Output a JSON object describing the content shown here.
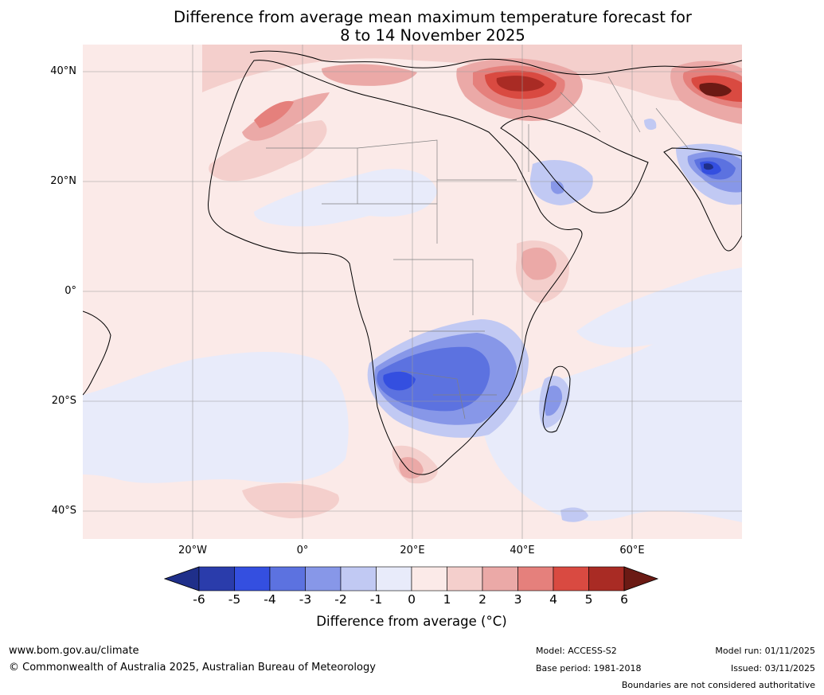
{
  "title": {
    "line1": "Difference from average mean maximum temperature forecast for",
    "line2": "8 to 14 November 2025"
  },
  "axes": {
    "latitude_labels": [
      "40°N",
      "20°N",
      "0°",
      "20°S",
      "40°S"
    ],
    "longitude_labels": [
      "20°W",
      "0°",
      "20°E",
      "40°E",
      "60°E"
    ]
  },
  "colorbar": {
    "label": "Difference from average ($^\\circ$C)",
    "label_text": "Difference from average (°C)",
    "ticks": [
      "-6",
      "-5",
      "-4",
      "-3",
      "-2",
      "-1",
      "0",
      "1",
      "2",
      "3",
      "4",
      "5",
      "6"
    ],
    "colors": [
      "#1f2f8a",
      "#2a3cab",
      "#344fe0",
      "#5c72e0",
      "#8797e8",
      "#c1c9f3",
      "#e8ebfa",
      "#fbeae8",
      "#f4cfcc",
      "#eba9a7",
      "#e5807c",
      "#d94a41",
      "#a92b24",
      "#6b1a14"
    ]
  },
  "footer": {
    "website": "www.bom.gov.au/climate",
    "copyright": "© Commonwealth of Australia 2025, Australian Bureau of Meteorology",
    "model": "Model: ACCESS-S2",
    "base_period": "Base period: 1981-2018",
    "model_run": "Model run: 01/11/2025",
    "issued": "Issued: 03/11/2025",
    "boundaries_note": "Boundaries are not considered authoritative"
  }
}
